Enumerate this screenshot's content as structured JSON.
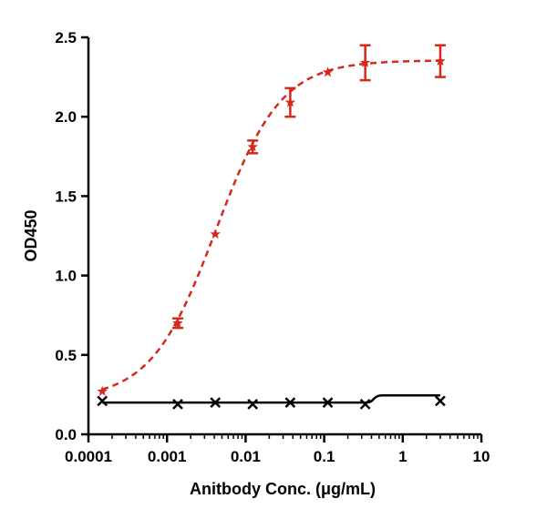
{
  "chart_data": {
    "type": "scatter",
    "title": "",
    "xlabel": "Anitbody Conc. (μg/mL)",
    "ylabel": "OD450",
    "x_scale": "log",
    "xlim": [
      0.0001,
      10
    ],
    "ylim": [
      0,
      2.5
    ],
    "x_ticks": [
      {
        "value": 0.0001,
        "label": "0.0001"
      },
      {
        "value": 0.001,
        "label": "0.001"
      },
      {
        "value": 0.01,
        "label": "0.01"
      },
      {
        "value": 0.1,
        "label": "0.1"
      },
      {
        "value": 1,
        "label": "1"
      },
      {
        "value": 10,
        "label": "10"
      }
    ],
    "y_ticks": [
      {
        "value": 0,
        "label": "0.0"
      },
      {
        "value": 0.5,
        "label": "0.5"
      },
      {
        "value": 1,
        "label": "1.0"
      },
      {
        "value": 1.5,
        "label": "1.5"
      },
      {
        "value": 2,
        "label": "2.0"
      },
      {
        "value": 2.5,
        "label": "2.5"
      }
    ],
    "grid": false,
    "legend": "none",
    "series": [
      {
        "color": "#d42a1c",
        "marker": "star",
        "line": "dashed",
        "x": [
          0.00015,
          0.00137,
          0.00412,
          0.0123,
          0.037,
          0.111,
          0.333,
          3.0
        ],
        "y": [
          0.27,
          0.7,
          1.26,
          1.81,
          2.09,
          2.28,
          2.34,
          2.35
        ],
        "err": [
          0.0,
          0.03,
          0.0,
          0.04,
          0.09,
          0.0,
          0.11,
          0.1
        ]
      },
      {
        "color": "#000000",
        "marker": "x",
        "line": "solid",
        "x": [
          0.00015,
          0.00137,
          0.00412,
          0.0123,
          0.037,
          0.111,
          0.333,
          3.0
        ],
        "y": [
          0.21,
          0.19,
          0.2,
          0.19,
          0.2,
          0.2,
          0.19,
          0.21
        ],
        "err": [
          0.0,
          0.0,
          0.0,
          0.0,
          0.0,
          0.0,
          0.0,
          0.0
        ]
      }
    ]
  }
}
